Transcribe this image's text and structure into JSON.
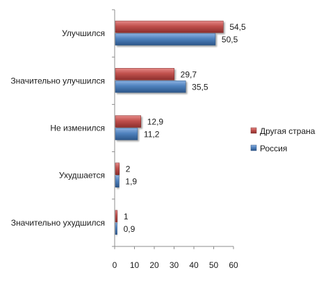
{
  "chart_data": {
    "type": "bar",
    "orientation": "horizontal",
    "categories": [
      "Улучшился",
      "Значительно улучшился",
      "Не изменился",
      "Ухудшается",
      "Значительно ухудшился"
    ],
    "series": [
      {
        "name": "Другая страна",
        "values": [
          54.5,
          29.7,
          12.9,
          2,
          1
        ],
        "value_labels": [
          "54,5",
          "29,7",
          "12,9",
          "2",
          "1"
        ],
        "color": "#c0504d"
      },
      {
        "name": "Россия",
        "values": [
          50.5,
          35.5,
          11.2,
          1.9,
          0.9
        ],
        "value_labels": [
          "50,5",
          "35,5",
          "11,2",
          "1,9",
          "0,9"
        ],
        "color": "#4f81bd"
      }
    ],
    "xlim": [
      0,
      60
    ],
    "x_ticks": [
      0,
      10,
      20,
      30,
      40,
      50,
      60
    ],
    "grid": false,
    "legend": "right",
    "title": "",
    "xlabel": "",
    "ylabel": ""
  }
}
